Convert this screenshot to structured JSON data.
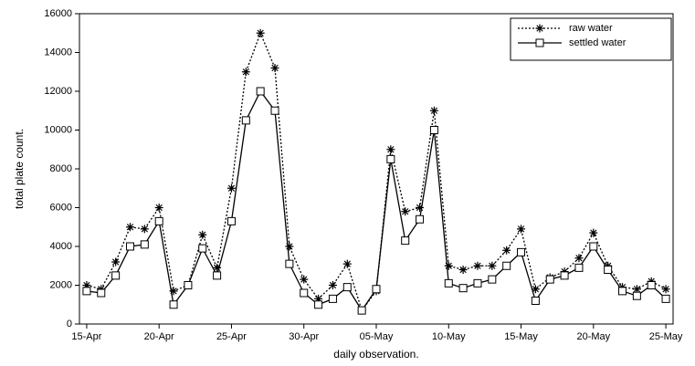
{
  "chart_data": {
    "type": "line",
    "x_label": "daily observation.",
    "y_label": "total plate count.",
    "categories": [
      "15-Apr",
      null,
      null,
      null,
      null,
      "20-Apr",
      null,
      null,
      null,
      null,
      "25-Apr",
      null,
      null,
      null,
      null,
      "30-Apr",
      null,
      null,
      null,
      null,
      "05-May",
      null,
      null,
      null,
      null,
      "10-May",
      null,
      null,
      null,
      null,
      "15-May",
      null,
      null,
      null,
      null,
      "20-May",
      null,
      null,
      null,
      null,
      "25-May"
    ],
    "series": [
      {
        "name": "raw water",
        "color": "#000000",
        "dash": "dotted",
        "marker": "star",
        "values": [
          2000,
          1800,
          3200,
          5000,
          4900,
          6000,
          1700,
          2000,
          4600,
          2900,
          7000,
          13000,
          15000,
          13200,
          4000,
          2300,
          1300,
          2000,
          3100,
          700,
          1700,
          9000,
          5800,
          6000,
          11000,
          3000,
          2800,
          3000,
          3000,
          3800,
          4900,
          1800,
          2400,
          2700,
          3400,
          4700,
          3000,
          1900,
          1800,
          2200,
          1800
        ]
      },
      {
        "name": "settled water",
        "color": "#000000",
        "dash": "solid",
        "marker": "square",
        "values": [
          1700,
          1600,
          2500,
          4000,
          4100,
          5300,
          1000,
          2000,
          3900,
          2500,
          5300,
          10500,
          12000,
          11000,
          3100,
          1600,
          1000,
          1300,
          1900,
          700,
          1800,
          8500,
          4300,
          5400,
          10000,
          2100,
          1850,
          2100,
          2300,
          3000,
          3700,
          1200,
          2300,
          2500,
          2900,
          4000,
          2800,
          1700,
          1450,
          2000,
          1300
        ]
      }
    ],
    "ylim": [
      0,
      16000
    ],
    "yticks": [
      0,
      2000,
      4000,
      6000,
      8000,
      10000,
      12000,
      14000,
      16000
    ],
    "grid": false,
    "legend": "top-right"
  }
}
